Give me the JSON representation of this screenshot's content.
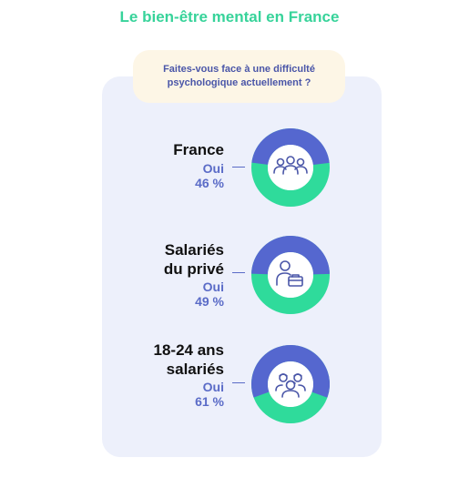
{
  "title": "Le bien-être mental en France",
  "question": [
    "Faites-vous face à une difficulté",
    "psychologique actuellement ?"
  ],
  "colors": {
    "title": "#37d39a",
    "oui": "#5567cf",
    "non": "#2fdb9b",
    "panel": "#edf0fb",
    "question_bg": "#fdf6e6",
    "icon": "#4a56a8"
  },
  "chart_data": {
    "type": "pie",
    "variant": "donut",
    "items": [
      {
        "label_lines": [
          "France"
        ],
        "answer": "Oui",
        "value_text": "46 %",
        "oui_percent": 46,
        "icon": "group-icon"
      },
      {
        "label_lines": [
          "Salariés",
          "du privé"
        ],
        "answer": "Oui",
        "value_text": "49 %",
        "oui_percent": 49,
        "icon": "employee-briefcase-icon"
      },
      {
        "label_lines": [
          "18-24 ans",
          "salariés"
        ],
        "answer": "Oui",
        "value_text": "61 %",
        "oui_percent": 61,
        "icon": "young-people-icon"
      }
    ]
  }
}
